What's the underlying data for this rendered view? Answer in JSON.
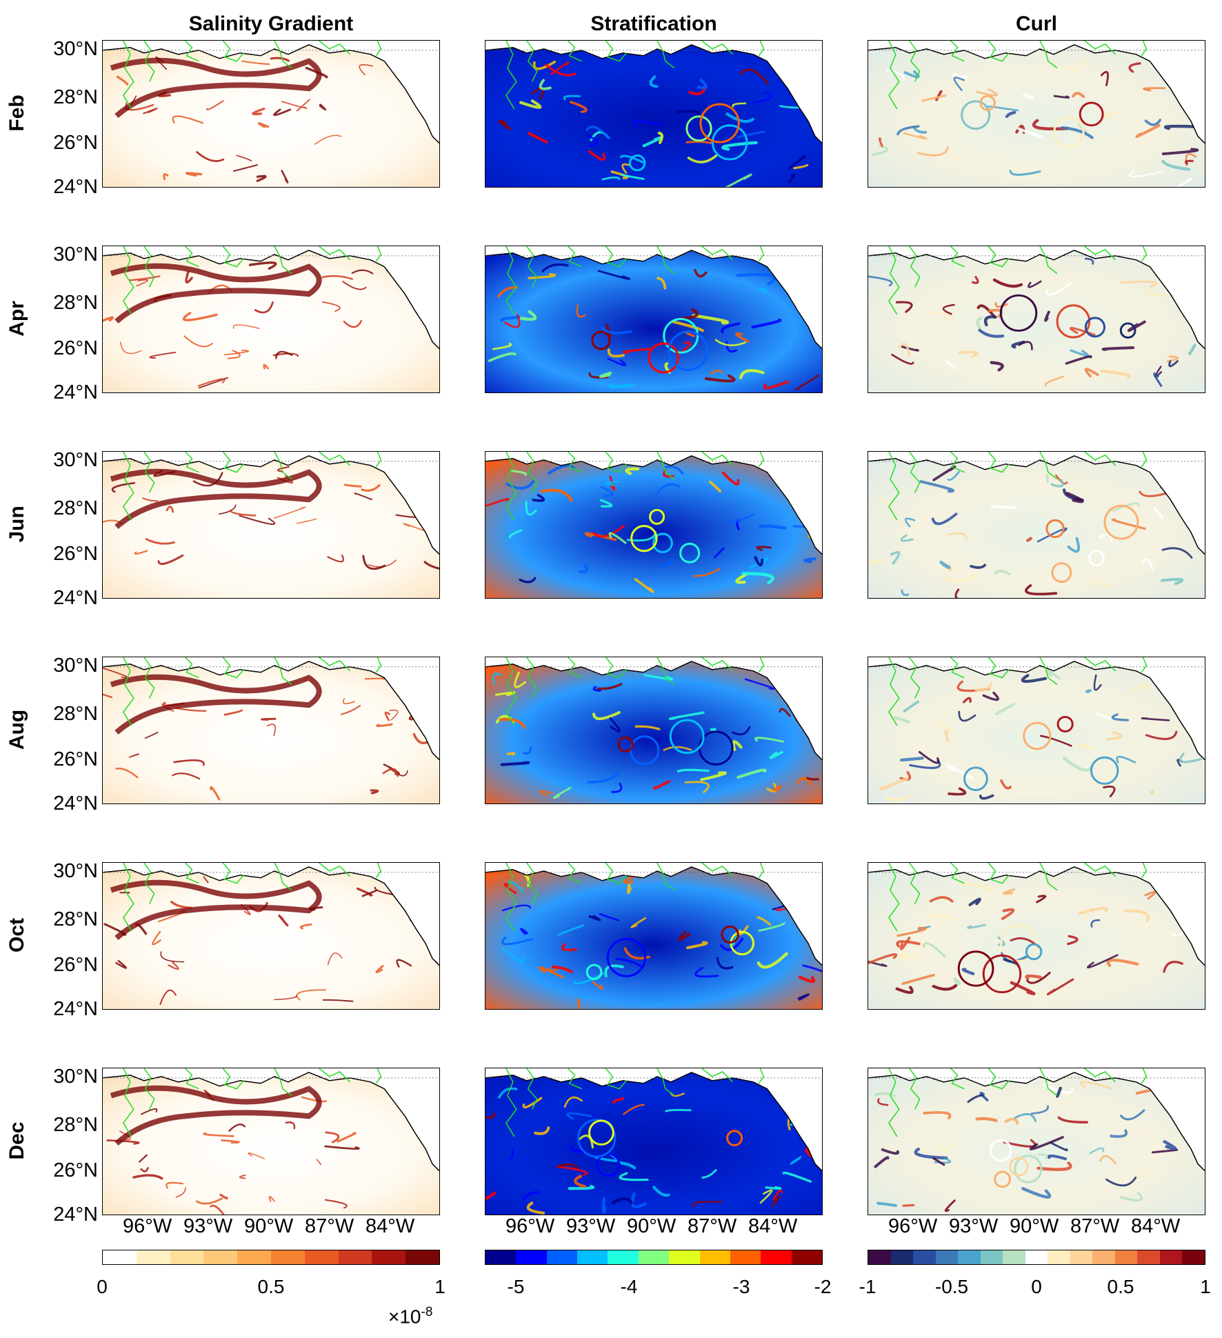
{
  "columns": [
    {
      "title": "Salinity Gradient"
    },
    {
      "title": "Stratification"
    },
    {
      "title": "Curl"
    }
  ],
  "rows": [
    "Feb",
    "Apr",
    "Jun",
    "Aug",
    "Oct",
    "Dec"
  ],
  "lat_ticks": [
    "30°N",
    "28°N",
    "26°N",
    "24°N"
  ],
  "lon_ticks": [
    "96°W",
    "93°W",
    "90°W",
    "87°W",
    "84°W"
  ],
  "colorbars": [
    {
      "name": "salinity-gradient",
      "ticks": [
        "0",
        "0.5",
        "1"
      ],
      "exponent_prefix": "×10",
      "exponent": "-8",
      "colors": [
        "#ffffff",
        "#fff1c4",
        "#ffe09a",
        "#fdc878",
        "#fca84f",
        "#f58230",
        "#e85b22",
        "#d13a20",
        "#a8150e",
        "#7a0707"
      ]
    },
    {
      "name": "stratification",
      "ticks": [
        "-5",
        "-4",
        "-3",
        "-2"
      ],
      "colors": [
        "#00008f",
        "#0000ff",
        "#0060ff",
        "#00bfff",
        "#20ffdf",
        "#80ff80",
        "#dfff20",
        "#ffbf00",
        "#ff6000",
        "#ff0000",
        "#8f0000"
      ]
    },
    {
      "name": "curl",
      "ticks": [
        "-1",
        "-0.5",
        "0",
        "0.5",
        "1"
      ],
      "colors": [
        "#3b0a45",
        "#1a2a6c",
        "#2a4ea0",
        "#3b79b8",
        "#4aa3cc",
        "#7cc4c4",
        "#b6e0c0",
        "#ffffff",
        "#ffeec0",
        "#fdd59a",
        "#f9b070",
        "#f08040",
        "#dc4a2c",
        "#b0161e",
        "#7a0010"
      ]
    }
  ]
}
